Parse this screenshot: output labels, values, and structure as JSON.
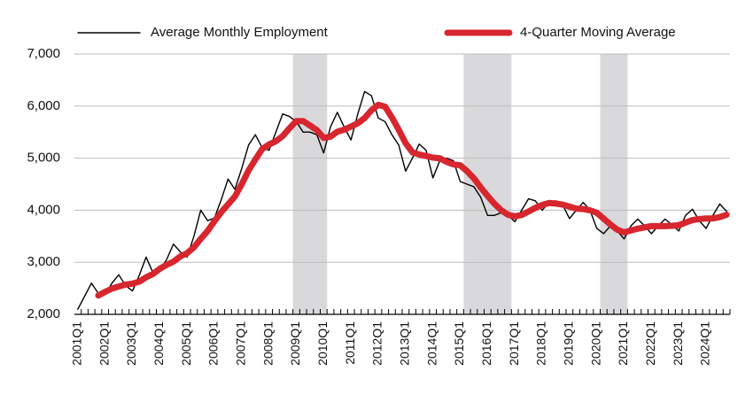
{
  "chart_data": {
    "type": "line",
    "categories": [
      "2001Q1",
      null,
      null,
      null,
      "2002Q1",
      null,
      null,
      null,
      "2003Q1",
      null,
      null,
      null,
      "2004Q1",
      null,
      null,
      null,
      "2005Q1",
      null,
      null,
      null,
      "2006Q1",
      null,
      null,
      null,
      "2007Q1",
      null,
      null,
      null,
      "2008Q1",
      null,
      null,
      null,
      "2009Q1",
      null,
      null,
      null,
      "2010Q1",
      null,
      null,
      null,
      "2011Q1",
      null,
      null,
      null,
      "2012Q1",
      null,
      null,
      null,
      "2013Q1",
      null,
      null,
      null,
      "2014Q1",
      null,
      null,
      null,
      "2015Q1",
      null,
      null,
      null,
      "2016Q1",
      null,
      null,
      null,
      "2017Q1",
      null,
      null,
      null,
      "2018Q1",
      null,
      null,
      null,
      "2019Q1",
      null,
      null,
      null,
      "2020Q1",
      null,
      null,
      null,
      "2021Q1",
      null,
      null,
      null,
      "2022Q1",
      null,
      null,
      null,
      "2023Q1",
      null,
      null,
      null,
      "2024Q1",
      null,
      null,
      null
    ],
    "series": [
      {
        "name": "Average Monthly Employment",
        "color": "#000000",
        "width": 1.4,
        "values": [
          2100,
          2350,
          2600,
          2400,
          2380,
          2600,
          2760,
          2550,
          2450,
          2750,
          3100,
          2800,
          2850,
          3050,
          3350,
          3200,
          3100,
          3500,
          4000,
          3800,
          3850,
          4200,
          4600,
          4400,
          4800,
          5250,
          5450,
          5200,
          5150,
          5500,
          5850,
          5800,
          5700,
          5500,
          5500,
          5450,
          5100,
          5600,
          5880,
          5600,
          5350,
          5850,
          6280,
          6200,
          5770,
          5700,
          5450,
          5250,
          4750,
          5000,
          5270,
          5150,
          4620,
          4950,
          5000,
          4950,
          4550,
          4500,
          4450,
          4250,
          3900,
          3900,
          3950,
          3900,
          3780,
          4000,
          4220,
          4180,
          4000,
          4150,
          4180,
          4100,
          3840,
          4000,
          4150,
          4000,
          3650,
          3550,
          3700,
          3600,
          3450,
          3700,
          3830,
          3700,
          3550,
          3700,
          3830,
          3720,
          3600,
          3900,
          4020,
          3800,
          3650,
          3900,
          4120,
          3980
        ]
      },
      {
        "name": "4-Quarter Moving Average",
        "color": "#d7262e",
        "width": 7,
        "values": [
          null,
          null,
          null,
          2362,
          2432,
          2495,
          2535,
          2572,
          2590,
          2628,
          2712,
          2775,
          2875,
          2950,
          3012,
          3112,
          3175,
          3288,
          3450,
          3600,
          3788,
          3962,
          4112,
          4262,
          4500,
          4762,
          4975,
          5175,
          5262,
          5325,
          5425,
          5575,
          5712,
          5712,
          5625,
          5538,
          5388,
          5412,
          5508,
          5545,
          5608,
          5670,
          5770,
          5920,
          6025,
          5988,
          5780,
          5542,
          5288,
          5112,
          5068,
          5042,
          5010,
          4998,
          4930,
          4880,
          4862,
          4750,
          4612,
          4438,
          4275,
          4125,
          4000,
          3912,
          3882,
          3908,
          3975,
          4045,
          4100,
          4138,
          4128,
          4108,
          4068,
          4030,
          4022,
          3998,
          3950,
          3838,
          3725,
          3625,
          3575,
          3612,
          3645,
          3670,
          3695,
          3695,
          3695,
          3700,
          3712,
          3762,
          3810,
          3830,
          3842,
          3842,
          3868,
          3912
        ]
      }
    ],
    "shaded_categories": [
      [
        32,
        36
      ],
      [
        57,
        63
      ],
      [
        77,
        80
      ]
    ],
    "shade_color": "#d9d9db",
    "ylim": [
      2000,
      7000
    ],
    "yticks": [
      {
        "value": 2000,
        "label": "2,000"
      },
      {
        "value": 3000,
        "label": "3,000"
      },
      {
        "value": 4000,
        "label": "4,000"
      },
      {
        "value": 5000,
        "label": "5,000"
      },
      {
        "value": 6000,
        "label": "6,000"
      },
      {
        "value": 7000,
        "label": "7,000"
      }
    ],
    "grid": true,
    "legend": "top"
  }
}
